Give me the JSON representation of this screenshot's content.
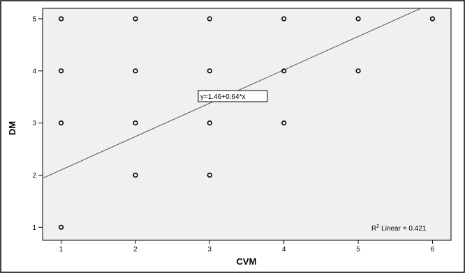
{
  "chart_data": {
    "type": "scatter",
    "xlabel": "CVM",
    "ylabel": "DM",
    "xlim": [
      0.75,
      6.25
    ],
    "ylim": [
      0.75,
      5.2
    ],
    "xticks": [
      "1",
      "2",
      "3",
      "4",
      "5",
      "6"
    ],
    "yticks": [
      "1",
      "2",
      "3",
      "4",
      "5"
    ],
    "points": [
      {
        "x": 1,
        "y": 5
      },
      {
        "x": 2,
        "y": 5
      },
      {
        "x": 3,
        "y": 5
      },
      {
        "x": 4,
        "y": 5
      },
      {
        "x": 5,
        "y": 5
      },
      {
        "x": 6,
        "y": 5
      },
      {
        "x": 1,
        "y": 4
      },
      {
        "x": 2,
        "y": 4
      },
      {
        "x": 3,
        "y": 4
      },
      {
        "x": 4,
        "y": 4
      },
      {
        "x": 5,
        "y": 4
      },
      {
        "x": 1,
        "y": 3
      },
      {
        "x": 2,
        "y": 3
      },
      {
        "x": 3,
        "y": 3
      },
      {
        "x": 4,
        "y": 3
      },
      {
        "x": 2,
        "y": 2
      },
      {
        "x": 3,
        "y": 2
      },
      {
        "x": 1,
        "y": 1
      }
    ],
    "fit_line": {
      "intercept": 1.46,
      "slope": 0.64
    },
    "equation_label": "y=1.46+0.64*x",
    "r2_label": "Linear = 0.421",
    "r2_prefix": "R",
    "r2_sup": "2",
    "grid": false,
    "colors": {
      "plot_bg": "#f0f0f0",
      "line": "#555555",
      "marker": "#000000"
    }
  }
}
